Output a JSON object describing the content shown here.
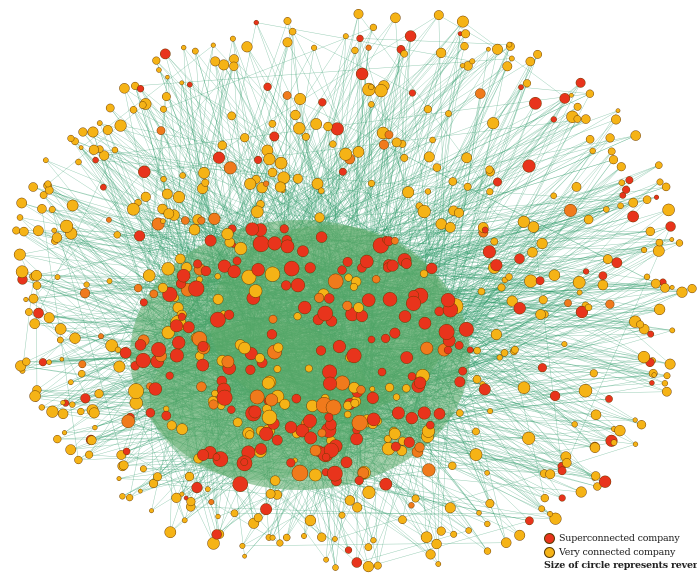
{
  "diagram": {
    "type": "network-graph",
    "node_categories": [
      {
        "key": "super",
        "label": "Superconnected company",
        "color": "#e8341c"
      },
      {
        "key": "very",
        "label": "Very connected company",
        "color": "#f5b316"
      }
    ],
    "edge_color": "#2e9b6a",
    "core_color": "#5aa866",
    "note": "Size of circle represents revenue"
  }
}
